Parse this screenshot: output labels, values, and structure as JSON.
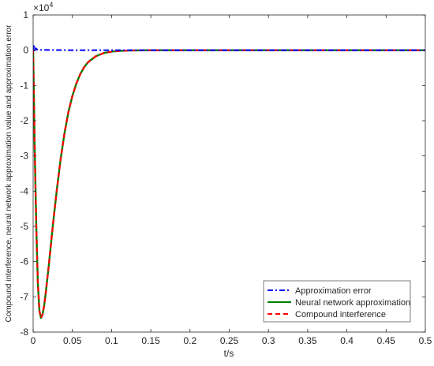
{
  "chart_data": {
    "type": "line",
    "title": "",
    "xlabel": "t/s",
    "ylabel": "Compound interference, neural network approximation value and approximation error",
    "y_exponent_label": "×10⁴",
    "xlim": [
      0,
      0.5
    ],
    "ylim": [
      -8,
      1
    ],
    "y_scale_note": "values in units of 10^4",
    "x_ticks": [
      0,
      0.05,
      0.1,
      0.15,
      0.2,
      0.25,
      0.3,
      0.35,
      0.4,
      0.45,
      0.5
    ],
    "x_tick_labels": [
      "0",
      "0.05",
      "0.1",
      "0.15",
      "0.2",
      "0.25",
      "0.3",
      "0.35",
      "0.4",
      "0.45",
      "0.5"
    ],
    "y_ticks": [
      1,
      0,
      -1,
      -2,
      -3,
      -4,
      -5,
      -6,
      -7,
      -8
    ],
    "y_tick_labels": [
      "1",
      "0",
      "-1",
      "-2",
      "-3",
      "-4",
      "-5",
      "-6",
      "-7",
      "-8"
    ],
    "grid": false,
    "legend_position": "bottom-right",
    "series": [
      {
        "name": "Approximation error",
        "color": "#0000ff",
        "style": "dash-dot",
        "x": [
          0,
          0.001,
          0.002,
          0.003,
          0.005,
          0.01,
          0.05,
          0.1,
          0.2,
          0.3,
          0.4,
          0.5
        ],
        "y": [
          0,
          0.12,
          -0.05,
          0.06,
          0.02,
          0.01,
          0.0,
          0.0,
          0.0,
          0.0,
          0.0,
          0.0
        ]
      },
      {
        "name": "Neural network approximation",
        "color": "#008000",
        "style": "solid",
        "x": [
          0,
          0.002,
          0.004,
          0.006,
          0.008,
          0.01,
          0.012,
          0.014,
          0.016,
          0.018,
          0.02,
          0.025,
          0.03,
          0.035,
          0.04,
          0.045,
          0.05,
          0.055,
          0.06,
          0.065,
          0.07,
          0.08,
          0.09,
          0.1,
          0.11,
          0.12,
          0.15,
          0.2,
          0.3,
          0.4,
          0.5
        ],
        "y": [
          0,
          -2.8,
          -5.0,
          -6.6,
          -7.4,
          -7.6,
          -7.5,
          -7.25,
          -6.9,
          -6.5,
          -6.1,
          -5.0,
          -4.0,
          -3.1,
          -2.35,
          -1.75,
          -1.3,
          -0.95,
          -0.68,
          -0.48,
          -0.34,
          -0.17,
          -0.08,
          -0.04,
          -0.02,
          -0.01,
          0.0,
          0.0,
          0.0,
          0.0,
          0.0
        ]
      },
      {
        "name": "Compound interference",
        "color": "#ff0000",
        "style": "dashed",
        "x": [
          0,
          0.002,
          0.004,
          0.006,
          0.008,
          0.01,
          0.012,
          0.014,
          0.016,
          0.018,
          0.02,
          0.025,
          0.03,
          0.035,
          0.04,
          0.045,
          0.05,
          0.055,
          0.06,
          0.065,
          0.07,
          0.08,
          0.09,
          0.1,
          0.11,
          0.12,
          0.15,
          0.2,
          0.3,
          0.4,
          0.5
        ],
        "y": [
          0,
          -2.8,
          -5.0,
          -6.6,
          -7.4,
          -7.6,
          -7.5,
          -7.25,
          -6.9,
          -6.5,
          -6.1,
          -5.0,
          -4.0,
          -3.1,
          -2.35,
          -1.75,
          -1.3,
          -0.95,
          -0.68,
          -0.48,
          -0.34,
          -0.17,
          -0.08,
          -0.04,
          -0.02,
          -0.01,
          0.0,
          0.0,
          0.0,
          0.0,
          0.0
        ]
      }
    ]
  }
}
